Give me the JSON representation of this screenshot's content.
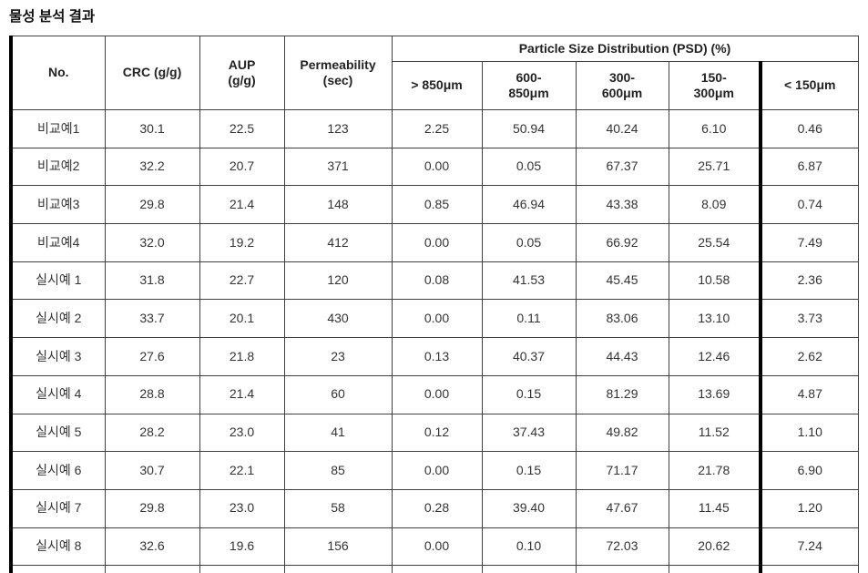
{
  "title": "물성 분석 결과",
  "table": {
    "header": {
      "no": "No.",
      "crc": "CRC (g/g)",
      "aup": "AUP\n(g/g)",
      "permeability": "Permeability\n(sec)",
      "psd_group": "Particle Size Distribution (PSD) (%)",
      "psd_columns": [
        "> 850μm",
        "600-\n850μm",
        "300-\n600μm",
        "150-\n300μm",
        "< 150μm"
      ]
    },
    "rows": [
      [
        "비교예1",
        "30.1",
        "22.5",
        "123",
        "2.25",
        "50.94",
        "40.24",
        "6.10",
        "0.46"
      ],
      [
        "비교예2",
        "32.2",
        "20.7",
        "371",
        "0.00",
        "0.05",
        "67.37",
        "25.71",
        "6.87"
      ],
      [
        "비교예3",
        "29.8",
        "21.4",
        "148",
        "0.85",
        "46.94",
        "43.38",
        "8.09",
        "0.74"
      ],
      [
        "비교예4",
        "32.0",
        "19.2",
        "412",
        "0.00",
        "0.05",
        "66.92",
        "25.54",
        "7.49"
      ],
      [
        "실시예 1",
        "31.8",
        "22.7",
        "120",
        "0.08",
        "41.53",
        "45.45",
        "10.58",
        "2.36"
      ],
      [
        "실시예 2",
        "33.7",
        "20.1",
        "430",
        "0.00",
        "0.11",
        "83.06",
        "13.10",
        "3.73"
      ],
      [
        "실시예 3",
        "27.6",
        "21.8",
        "23",
        "0.13",
        "40.37",
        "44.43",
        "12.46",
        "2.62"
      ],
      [
        "실시예 4",
        "28.8",
        "21.4",
        "60",
        "0.00",
        "0.15",
        "81.29",
        "13.69",
        "4.87"
      ],
      [
        "실시예 5",
        "28.2",
        "23.0",
        "41",
        "0.12",
        "37.43",
        "49.82",
        "11.52",
        "1.10"
      ],
      [
        "실시예 6",
        "30.7",
        "22.1",
        "85",
        "0.00",
        "0.15",
        "71.17",
        "21.78",
        "6.90"
      ],
      [
        "실시예 7",
        "29.8",
        "23.0",
        "58",
        "0.28",
        "39.40",
        "47.67",
        "11.45",
        "1.20"
      ],
      [
        "실시예 8",
        "32.6",
        "19.6",
        "156",
        "0.00",
        "0.10",
        "72.03",
        "20.62",
        "7.24"
      ]
    ]
  },
  "colors": {
    "thin_border": "#404040",
    "thick_border": "#000000",
    "text": "#333333",
    "background": "#ffffff"
  }
}
